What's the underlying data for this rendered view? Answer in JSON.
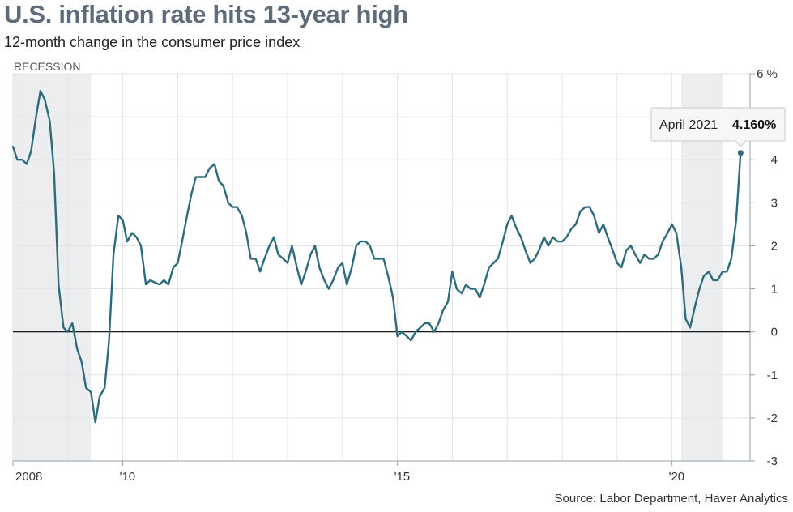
{
  "header": {
    "title": "U.S. inflation rate hits 13-year high",
    "subtitle": "12-month change in the consumer price index"
  },
  "footer": {
    "source": "Source: Labor Department, Haver Analytics"
  },
  "colors": {
    "line": "#2e6b7c",
    "recession_band": "#ebedef",
    "grid": "#e2e4e6",
    "zero_line": "#000000"
  },
  "chart_data": {
    "type": "line",
    "title": "U.S. inflation rate hits 13-year high",
    "subtitle": "12-month change in the consumer price index",
    "x_unit": "year",
    "xlim": [
      2008.0,
      2021.3
    ],
    "ylim": [
      -3,
      6
    ],
    "y_ticks": [
      6,
      5,
      4,
      3,
      2,
      1,
      0,
      -1,
      -2,
      -3
    ],
    "y_tick_labels": [
      "6 %",
      "5",
      "4",
      "3",
      "2",
      "1",
      "0",
      "-1",
      "-2",
      "-3"
    ],
    "x_ticks": [
      {
        "year": 2008,
        "label": "2008"
      },
      {
        "year": 2010,
        "label": "'10"
      },
      {
        "year": 2015,
        "label": "'15"
      },
      {
        "year": 2020,
        "label": "'20"
      }
    ],
    "grid": true,
    "zero_line": true,
    "recession_label": "RECESSION",
    "recessions": [
      {
        "start": 2008.0,
        "end": 2009.42
      },
      {
        "start": 2020.17,
        "end": 2020.92
      }
    ],
    "series": [
      {
        "values": [
          [
            2008.0,
            4.3
          ],
          [
            2008.08,
            4.0
          ],
          [
            2008.17,
            4.0
          ],
          [
            2008.25,
            3.9
          ],
          [
            2008.33,
            4.2
          ],
          [
            2008.42,
            5.0
          ],
          [
            2008.5,
            5.6
          ],
          [
            2008.58,
            5.4
          ],
          [
            2008.67,
            4.9
          ],
          [
            2008.75,
            3.7
          ],
          [
            2008.83,
            1.1
          ],
          [
            2008.92,
            0.1
          ],
          [
            2009.0,
            0.0
          ],
          [
            2009.08,
            0.2
          ],
          [
            2009.17,
            -0.4
          ],
          [
            2009.25,
            -0.7
          ],
          [
            2009.33,
            -1.3
          ],
          [
            2009.42,
            -1.4
          ],
          [
            2009.5,
            -2.1
          ],
          [
            2009.58,
            -1.5
          ],
          [
            2009.67,
            -1.3
          ],
          [
            2009.75,
            -0.2
          ],
          [
            2009.83,
            1.8
          ],
          [
            2009.92,
            2.7
          ],
          [
            2010.0,
            2.6
          ],
          [
            2010.08,
            2.1
          ],
          [
            2010.17,
            2.3
          ],
          [
            2010.25,
            2.2
          ],
          [
            2010.33,
            2.0
          ],
          [
            2010.42,
            1.1
          ],
          [
            2010.5,
            1.2
          ],
          [
            2010.58,
            1.15
          ],
          [
            2010.67,
            1.1
          ],
          [
            2010.75,
            1.2
          ],
          [
            2010.83,
            1.1
          ],
          [
            2010.92,
            1.5
          ],
          [
            2011.0,
            1.6
          ],
          [
            2011.08,
            2.1
          ],
          [
            2011.17,
            2.7
          ],
          [
            2011.25,
            3.2
          ],
          [
            2011.33,
            3.6
          ],
          [
            2011.42,
            3.6
          ],
          [
            2011.5,
            3.6
          ],
          [
            2011.58,
            3.8
          ],
          [
            2011.67,
            3.9
          ],
          [
            2011.75,
            3.5
          ],
          [
            2011.83,
            3.4
          ],
          [
            2011.92,
            3.0
          ],
          [
            2012.0,
            2.9
          ],
          [
            2012.08,
            2.9
          ],
          [
            2012.17,
            2.7
          ],
          [
            2012.25,
            2.3
          ],
          [
            2012.33,
            1.7
          ],
          [
            2012.42,
            1.7
          ],
          [
            2012.5,
            1.4
          ],
          [
            2012.58,
            1.7
          ],
          [
            2012.67,
            2.0
          ],
          [
            2012.75,
            2.2
          ],
          [
            2012.83,
            1.8
          ],
          [
            2012.92,
            1.7
          ],
          [
            2013.0,
            1.6
          ],
          [
            2013.08,
            2.0
          ],
          [
            2013.17,
            1.5
          ],
          [
            2013.25,
            1.1
          ],
          [
            2013.33,
            1.4
          ],
          [
            2013.42,
            1.8
          ],
          [
            2013.5,
            2.0
          ],
          [
            2013.58,
            1.5
          ],
          [
            2013.67,
            1.2
          ],
          [
            2013.75,
            1.0
          ],
          [
            2013.83,
            1.2
          ],
          [
            2013.92,
            1.5
          ],
          [
            2014.0,
            1.6
          ],
          [
            2014.08,
            1.1
          ],
          [
            2014.17,
            1.5
          ],
          [
            2014.25,
            2.0
          ],
          [
            2014.33,
            2.1
          ],
          [
            2014.42,
            2.1
          ],
          [
            2014.5,
            2.0
          ],
          [
            2014.58,
            1.7
          ],
          [
            2014.67,
            1.7
          ],
          [
            2014.75,
            1.7
          ],
          [
            2014.83,
            1.3
          ],
          [
            2014.92,
            0.8
          ],
          [
            2015.0,
            -0.1
          ],
          [
            2015.08,
            0.0
          ],
          [
            2015.17,
            -0.1
          ],
          [
            2015.25,
            -0.2
          ],
          [
            2015.33,
            0.0
          ],
          [
            2015.42,
            0.1
          ],
          [
            2015.5,
            0.2
          ],
          [
            2015.58,
            0.2
          ],
          [
            2015.67,
            0.0
          ],
          [
            2015.75,
            0.2
          ],
          [
            2015.83,
            0.5
          ],
          [
            2015.92,
            0.7
          ],
          [
            2016.0,
            1.4
          ],
          [
            2016.08,
            1.0
          ],
          [
            2016.17,
            0.9
          ],
          [
            2016.25,
            1.1
          ],
          [
            2016.33,
            1.0
          ],
          [
            2016.42,
            1.0
          ],
          [
            2016.5,
            0.8
          ],
          [
            2016.58,
            1.1
          ],
          [
            2016.67,
            1.5
          ],
          [
            2016.75,
            1.6
          ],
          [
            2016.83,
            1.7
          ],
          [
            2016.92,
            2.1
          ],
          [
            2017.0,
            2.5
          ],
          [
            2017.08,
            2.7
          ],
          [
            2017.17,
            2.4
          ],
          [
            2017.25,
            2.2
          ],
          [
            2017.33,
            1.9
          ],
          [
            2017.42,
            1.6
          ],
          [
            2017.5,
            1.7
          ],
          [
            2017.58,
            1.9
          ],
          [
            2017.67,
            2.2
          ],
          [
            2017.75,
            2.0
          ],
          [
            2017.83,
            2.2
          ],
          [
            2017.92,
            2.1
          ],
          [
            2018.0,
            2.1
          ],
          [
            2018.08,
            2.2
          ],
          [
            2018.17,
            2.4
          ],
          [
            2018.25,
            2.5
          ],
          [
            2018.33,
            2.8
          ],
          [
            2018.42,
            2.9
          ],
          [
            2018.5,
            2.9
          ],
          [
            2018.58,
            2.7
          ],
          [
            2018.67,
            2.3
          ],
          [
            2018.75,
            2.5
          ],
          [
            2018.83,
            2.2
          ],
          [
            2018.92,
            1.9
          ],
          [
            2019.0,
            1.6
          ],
          [
            2019.08,
            1.5
          ],
          [
            2019.17,
            1.9
          ],
          [
            2019.25,
            2.0
          ],
          [
            2019.33,
            1.8
          ],
          [
            2019.42,
            1.6
          ],
          [
            2019.5,
            1.8
          ],
          [
            2019.58,
            1.7
          ],
          [
            2019.67,
            1.7
          ],
          [
            2019.75,
            1.8
          ],
          [
            2019.83,
            2.1
          ],
          [
            2019.92,
            2.3
          ],
          [
            2020.0,
            2.5
          ],
          [
            2020.08,
            2.3
          ],
          [
            2020.17,
            1.5
          ],
          [
            2020.25,
            0.3
          ],
          [
            2020.33,
            0.1
          ],
          [
            2020.42,
            0.6
          ],
          [
            2020.5,
            1.0
          ],
          [
            2020.58,
            1.3
          ],
          [
            2020.67,
            1.4
          ],
          [
            2020.75,
            1.2
          ],
          [
            2020.83,
            1.2
          ],
          [
            2020.92,
            1.4
          ],
          [
            2021.0,
            1.4
          ],
          [
            2021.08,
            1.7
          ],
          [
            2021.17,
            2.6
          ],
          [
            2021.25,
            4.16
          ]
        ]
      }
    ],
    "annotation": {
      "x": 2021.25,
      "y": 4.16,
      "date_label": "April 2021",
      "value_label": "4.160%"
    }
  }
}
